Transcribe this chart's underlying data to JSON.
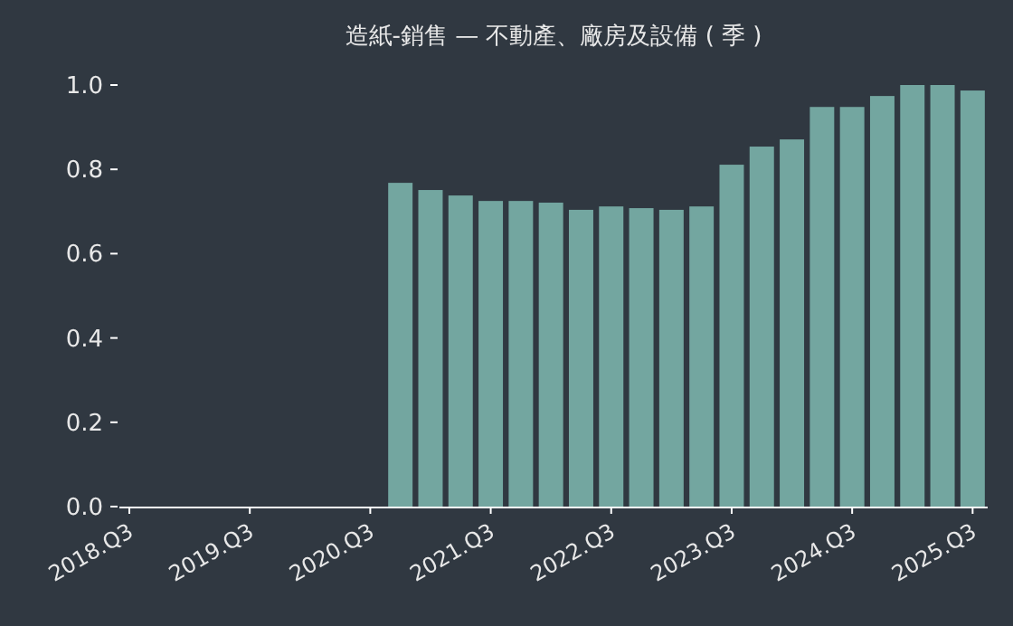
{
  "chart_data": {
    "type": "bar",
    "title": "造紙-銷售 — 不動產、廠房及設備 ( 季 )",
    "categories": [
      "2018.Q3",
      null,
      null,
      null,
      "2019.Q3",
      null,
      null,
      null,
      "2020.Q3",
      null,
      null,
      null,
      "2021.Q3",
      null,
      null,
      null,
      "2022.Q3",
      null,
      null,
      null,
      "2023.Q3",
      null,
      null,
      null,
      "2024.Q3",
      null,
      null,
      null,
      "2025.Q3"
    ],
    "values": [
      null,
      null,
      null,
      null,
      null,
      null,
      null,
      null,
      null,
      0.768,
      0.751,
      0.738,
      0.725,
      0.725,
      0.721,
      0.704,
      0.712,
      0.708,
      0.704,
      0.712,
      0.811,
      0.854,
      0.871,
      0.948,
      0.948,
      0.974,
      1.0,
      1.0,
      0.987
    ],
    "color": "#73a6a0",
    "ylim": [
      0,
      1.0
    ],
    "yticks": [
      {
        "value": 0,
        "label": "0.0"
      },
      {
        "value": 0.2,
        "label": "0.2"
      },
      {
        "value": 0.4,
        "label": "0.4"
      },
      {
        "value": 0.6,
        "label": "0.6"
      },
      {
        "value": 0.8,
        "label": "0.8"
      },
      {
        "value": 1.0,
        "label": "1.0"
      }
    ]
  }
}
